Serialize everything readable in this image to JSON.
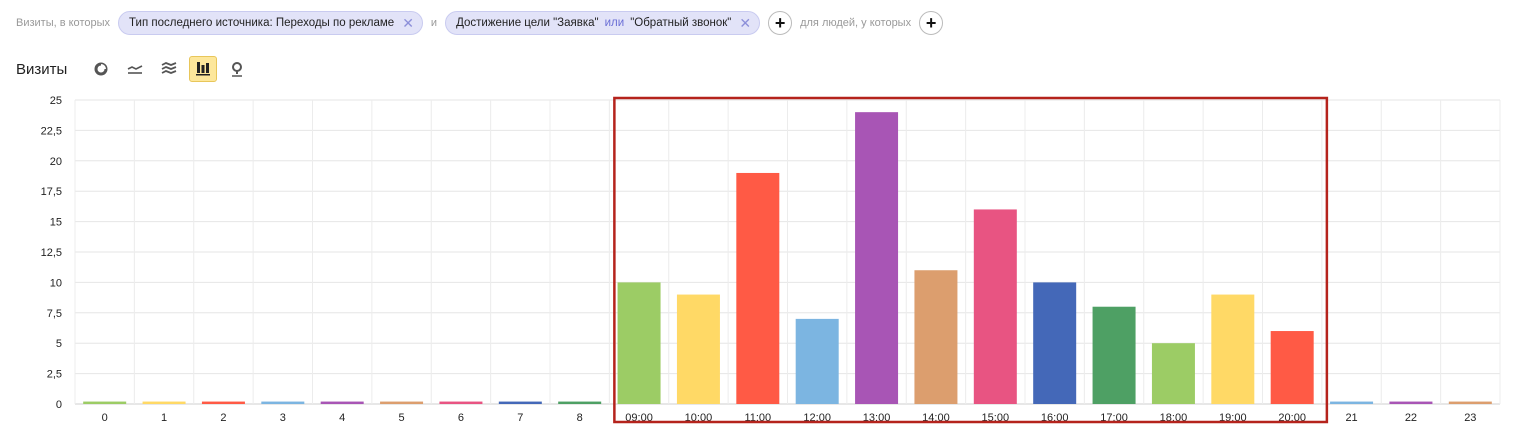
{
  "filters": {
    "prefix": "Визиты, в которых",
    "chip1": "Тип последнего источника: Переходы по рекламе",
    "and_label": "и",
    "chip2_part1": "Достижение цели \"Заявка\"",
    "chip2_or": "или",
    "chip2_part2": "\"Обратный звонок\"",
    "add_symbol": "+",
    "people_label": "для людей, у которых"
  },
  "toolbar": {
    "title": "Визиты",
    "icons": [
      "pie-chart-icon",
      "line-chart-icon",
      "area-chart-icon",
      "bar-chart-icon",
      "map-icon"
    ],
    "active": "bar-chart-icon"
  },
  "chart_data": {
    "type": "bar",
    "title": "",
    "xlabel": "",
    "ylabel": "",
    "ylim": [
      0,
      25
    ],
    "yticks": [
      "0",
      "2,5",
      "5",
      "7,5",
      "10",
      "12,5",
      "15",
      "17,5",
      "20",
      "22,5",
      "25"
    ],
    "grid": true,
    "categories": [
      "0",
      "1",
      "2",
      "3",
      "4",
      "5",
      "6",
      "7",
      "8",
      "09:00",
      "10:00",
      "11:00",
      "12:00",
      "13:00",
      "14:00",
      "15:00",
      "16:00",
      "17:00",
      "18:00",
      "19:00",
      "20:00",
      "21",
      "22",
      "23"
    ],
    "values": [
      0.2,
      0.2,
      0.2,
      0.2,
      0.2,
      0.2,
      0.2,
      0.2,
      0.2,
      10,
      9,
      19,
      7,
      24,
      11,
      16,
      10,
      8,
      5,
      9,
      6,
      0.2,
      0.2,
      0.2
    ],
    "colors": [
      "#9ccc65",
      "#ffd966",
      "#ff5a45",
      "#7cb5e1",
      "#a855b5",
      "#dc9e6e",
      "#e85482",
      "#4468b8",
      "#4ea064",
      "#9ccc65",
      "#ffd966",
      "#ff5a45",
      "#7cb5e1",
      "#a855b5",
      "#dc9e6e",
      "#e85482",
      "#4468b8",
      "#4ea064",
      "#9ccc65",
      "#ffd966",
      "#ff5a45",
      "#7cb5e1",
      "#a855b5",
      "#dc9e6e"
    ],
    "highlight_range": [
      "09:00",
      "20:00"
    ],
    "highlight_color": "#b5231c"
  }
}
